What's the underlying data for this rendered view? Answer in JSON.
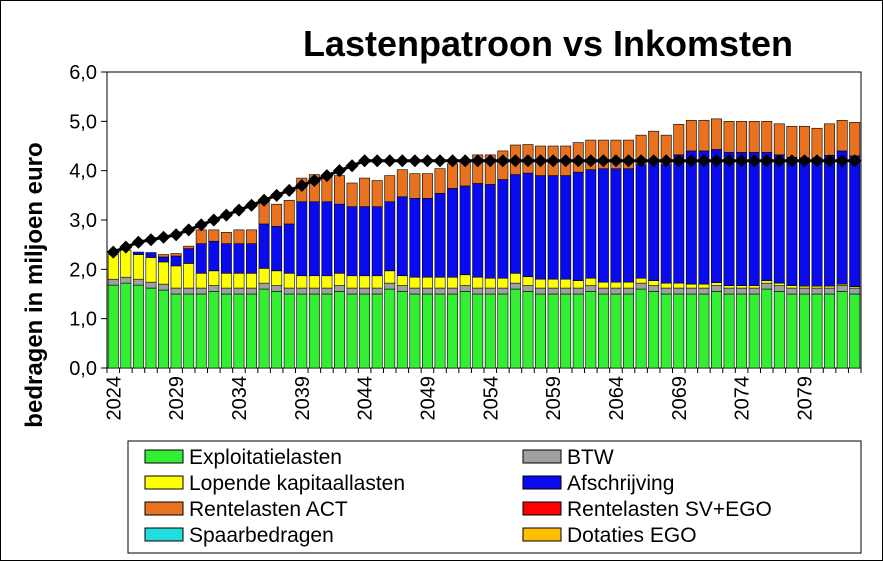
{
  "chart_data": {
    "type": "bar",
    "title": "Lastenpatroon vs Inkomsten",
    "ylabel": "bedragen in miljoen euro",
    "xlabel": "",
    "ylim": [
      0,
      6
    ],
    "yticks": [
      "0,0",
      "1,0",
      "2,0",
      "3,0",
      "4,0",
      "5,0",
      "6,0"
    ],
    "xtick_labels": [
      "2024",
      "2029",
      "2034",
      "2039",
      "2044",
      "2049",
      "2054",
      "2059",
      "2064",
      "2069",
      "2074",
      "2079"
    ],
    "stacked": true,
    "grid": false,
    "legend_position": "bottom",
    "categories": [
      2024,
      2025,
      2026,
      2027,
      2028,
      2029,
      2030,
      2031,
      2032,
      2033,
      2034,
      2035,
      2036,
      2037,
      2038,
      2039,
      2040,
      2041,
      2042,
      2043,
      2044,
      2045,
      2046,
      2047,
      2048,
      2049,
      2050,
      2051,
      2052,
      2053,
      2054,
      2055,
      2056,
      2057,
      2058,
      2059,
      2060,
      2061,
      2062,
      2063,
      2064,
      2065,
      2066,
      2067,
      2068,
      2069,
      2070,
      2071,
      2072,
      2073,
      2074,
      2075,
      2076,
      2077,
      2078,
      2079,
      2080,
      2081,
      2082,
      2083
    ],
    "series": [
      {
        "name": "Exploitatielasten",
        "color": "#33ee33",
        "values": [
          1.68,
          1.72,
          1.68,
          1.62,
          1.58,
          1.5,
          1.5,
          1.5,
          1.55,
          1.5,
          1.5,
          1.5,
          1.6,
          1.55,
          1.5,
          1.5,
          1.5,
          1.5,
          1.55,
          1.5,
          1.5,
          1.5,
          1.6,
          1.55,
          1.5,
          1.5,
          1.5,
          1.5,
          1.55,
          1.5,
          1.5,
          1.5,
          1.6,
          1.55,
          1.5,
          1.5,
          1.5,
          1.5,
          1.55,
          1.5,
          1.5,
          1.5,
          1.6,
          1.55,
          1.5,
          1.5,
          1.5,
          1.5,
          1.55,
          1.5,
          1.5,
          1.5,
          1.6,
          1.55,
          1.5,
          1.5,
          1.5,
          1.5,
          1.55,
          1.5
        ]
      },
      {
        "name": "BTW",
        "color": "#a0a0a0",
        "values": [
          0.12,
          0.12,
          0.12,
          0.12,
          0.12,
          0.12,
          0.12,
          0.12,
          0.12,
          0.12,
          0.12,
          0.12,
          0.12,
          0.12,
          0.12,
          0.12,
          0.12,
          0.12,
          0.12,
          0.12,
          0.12,
          0.12,
          0.12,
          0.12,
          0.12,
          0.12,
          0.12,
          0.12,
          0.12,
          0.12,
          0.12,
          0.12,
          0.12,
          0.12,
          0.12,
          0.12,
          0.12,
          0.12,
          0.12,
          0.12,
          0.12,
          0.12,
          0.12,
          0.12,
          0.12,
          0.12,
          0.12,
          0.12,
          0.12,
          0.12,
          0.12,
          0.12,
          0.12,
          0.12,
          0.12,
          0.12,
          0.12,
          0.12,
          0.12,
          0.12
        ]
      },
      {
        "name": "Lopende kapitaallasten",
        "color": "#ffff00",
        "values": [
          0.5,
          0.55,
          0.5,
          0.5,
          0.45,
          0.45,
          0.5,
          0.3,
          0.3,
          0.3,
          0.3,
          0.3,
          0.3,
          0.3,
          0.3,
          0.25,
          0.25,
          0.25,
          0.25,
          0.25,
          0.25,
          0.25,
          0.25,
          0.2,
          0.22,
          0.22,
          0.22,
          0.22,
          0.22,
          0.22,
          0.2,
          0.2,
          0.2,
          0.18,
          0.18,
          0.18,
          0.18,
          0.15,
          0.15,
          0.12,
          0.12,
          0.12,
          0.1,
          0.1,
          0.1,
          0.1,
          0.08,
          0.08,
          0.06,
          0.05,
          0.05,
          0.05,
          0.05,
          0.05,
          0.05,
          0.04,
          0.04,
          0.04,
          0.03,
          0.03
        ]
      },
      {
        "name": "Afschrijving",
        "color": "#0a0aee",
        "values": [
          0,
          0,
          0.05,
          0.1,
          0.1,
          0.2,
          0.3,
          0.6,
          0.6,
          0.6,
          0.6,
          0.6,
          0.9,
          0.9,
          1.0,
          1.5,
          1.5,
          1.5,
          1.4,
          1.4,
          1.4,
          1.4,
          1.4,
          1.6,
          1.6,
          1.6,
          1.7,
          1.8,
          1.8,
          1.9,
          1.9,
          2.0,
          2.0,
          2.1,
          2.1,
          2.1,
          2.1,
          2.2,
          2.2,
          2.3,
          2.3,
          2.3,
          2.3,
          2.4,
          2.4,
          2.6,
          2.7,
          2.7,
          2.7,
          2.7,
          2.7,
          2.7,
          2.6,
          2.6,
          2.6,
          2.6,
          2.6,
          2.65,
          2.7,
          2.65
        ]
      },
      {
        "name": "Rentelasten ACT",
        "color": "#e87220",
        "values": [
          0,
          0,
          0,
          0,
          0.05,
          0.05,
          0.05,
          0.28,
          0.23,
          0.23,
          0.28,
          0.28,
          0.45,
          0.45,
          0.48,
          0.48,
          0.55,
          0.53,
          0.58,
          0.48,
          0.58,
          0.53,
          0.53,
          0.55,
          0.5,
          0.5,
          0.5,
          0.5,
          0.5,
          0.58,
          0.6,
          0.58,
          0.6,
          0.58,
          0.6,
          0.6,
          0.6,
          0.6,
          0.6,
          0.58,
          0.58,
          0.58,
          0.6,
          0.63,
          0.6,
          0.62,
          0.62,
          0.62,
          0.62,
          0.63,
          0.63,
          0.63,
          0.63,
          0.63,
          0.63,
          0.64,
          0.6,
          0.64,
          0.62,
          0.68
        ]
      },
      {
        "name": "Rentelasten SV+EGO",
        "color": "#ff0000",
        "values": [
          0,
          0,
          0,
          0,
          0,
          0,
          0,
          0,
          0,
          0,
          0,
          0,
          0,
          0,
          0,
          0,
          0,
          0,
          0,
          0,
          0,
          0,
          0,
          0,
          0,
          0,
          0,
          0,
          0,
          0,
          0,
          0,
          0,
          0,
          0,
          0,
          0,
          0,
          0,
          0,
          0,
          0,
          0,
          0,
          0,
          0,
          0,
          0,
          0,
          0,
          0,
          0,
          0,
          0,
          0,
          0,
          0,
          0,
          0,
          0
        ]
      },
      {
        "name": "Spaarbedragen",
        "color": "#22dddd",
        "values": [
          0,
          0,
          0,
          0,
          0,
          0,
          0,
          0,
          0,
          0,
          0,
          0,
          0,
          0,
          0,
          0,
          0,
          0,
          0,
          0,
          0,
          0,
          0,
          0,
          0,
          0,
          0,
          0,
          0,
          0,
          0,
          0,
          0,
          0,
          0,
          0,
          0,
          0,
          0,
          0,
          0,
          0,
          0,
          0,
          0,
          0,
          0,
          0,
          0,
          0,
          0,
          0,
          0,
          0,
          0,
          0,
          0,
          0,
          0,
          0
        ]
      },
      {
        "name": "Dotaties EGO",
        "color": "#ffbf00",
        "values": [
          0,
          0,
          0,
          0,
          0,
          0,
          0,
          0,
          0,
          0,
          0,
          0,
          0,
          0,
          0,
          0,
          0,
          0,
          0,
          0,
          0,
          0,
          0,
          0,
          0,
          0,
          0,
          0,
          0,
          0,
          0,
          0,
          0,
          0,
          0,
          0,
          0,
          0,
          0,
          0,
          0,
          0,
          0,
          0,
          0,
          0,
          0,
          0,
          0,
          0,
          0,
          0,
          0,
          0,
          0,
          0,
          0,
          0,
          0,
          0
        ]
      }
    ],
    "line_series": {
      "type": "line",
      "color": "#000000",
      "marker": "diamond",
      "values": [
        2.35,
        2.45,
        2.55,
        2.6,
        2.65,
        2.7,
        2.8,
        2.9,
        3.0,
        3.1,
        3.2,
        3.3,
        3.4,
        3.5,
        3.6,
        3.7,
        3.8,
        3.9,
        4.0,
        4.1,
        4.2,
        4.2,
        4.2,
        4.2,
        4.2,
        4.2,
        4.2,
        4.2,
        4.2,
        4.2,
        4.2,
        4.2,
        4.2,
        4.2,
        4.2,
        4.2,
        4.2,
        4.2,
        4.2,
        4.2,
        4.2,
        4.2,
        4.2,
        4.2,
        4.2,
        4.2,
        4.2,
        4.2,
        4.2,
        4.2,
        4.2,
        4.2,
        4.2,
        4.2,
        4.2,
        4.2,
        4.2,
        4.2,
        4.2,
        4.2
      ]
    }
  }
}
